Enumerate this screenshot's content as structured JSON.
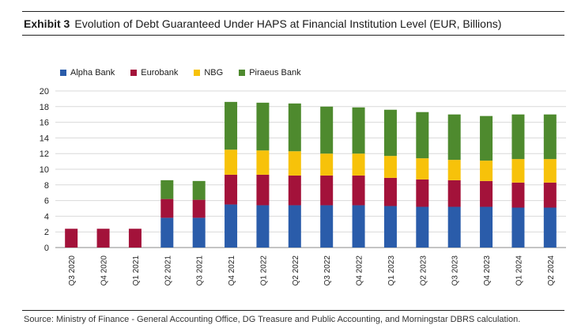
{
  "header": {
    "exhibit_label": "Exhibit 3",
    "title": "Evolution of Debt Guaranteed Under HAPS at Financial Institution Level (EUR, Billions)"
  },
  "footer": {
    "source": "Source: Ministry of Finance - General Accounting Office, DG Treasure and Public Accounting, and Morningstar DBRS calculation."
  },
  "colors": {
    "alpha": "#2a5caa",
    "eurobank": "#a3123a",
    "nbg": "#f7c20a",
    "piraeus": "#4e8a2e",
    "grid": "#d9d9d9",
    "axis": "#888888"
  },
  "chart_data": {
    "type": "bar",
    "stacked": true,
    "categories": [
      "Q3 2020",
      "Q4 2020",
      "Q1 2021",
      "Q2 2021",
      "Q3 2021",
      "Q4 2021",
      "Q1 2022",
      "Q2 2022",
      "Q3 2022",
      "Q4 2022",
      "Q1 2023",
      "Q2 2023",
      "Q3 2023",
      "Q4 2023",
      "Q1 2024",
      "Q2 2024"
    ],
    "series": [
      {
        "name": "Alpha Bank",
        "color": "#2a5caa",
        "values": [
          0,
          0,
          0,
          3.8,
          3.8,
          5.5,
          5.4,
          5.4,
          5.4,
          5.4,
          5.3,
          5.2,
          5.2,
          5.2,
          5.1,
          5.1
        ]
      },
      {
        "name": "Eurobank",
        "color": "#a3123a",
        "values": [
          2.4,
          2.4,
          2.4,
          2.4,
          2.3,
          3.8,
          3.9,
          3.8,
          3.8,
          3.8,
          3.6,
          3.5,
          3.4,
          3.3,
          3.2,
          3.2
        ]
      },
      {
        "name": "NBG",
        "color": "#f7c20a",
        "values": [
          0,
          0,
          0,
          0,
          0,
          3.2,
          3.1,
          3.1,
          2.8,
          2.8,
          2.8,
          2.7,
          2.6,
          2.6,
          3.0,
          3.0
        ]
      },
      {
        "name": "Piraeus Bank",
        "color": "#4e8a2e",
        "values": [
          0,
          0,
          0,
          2.4,
          2.4,
          6.1,
          6.1,
          6.1,
          6.0,
          5.9,
          5.9,
          5.9,
          5.8,
          5.7,
          5.7,
          5.7
        ]
      }
    ],
    "ylim": [
      0,
      20
    ],
    "yticks": [
      0,
      2,
      4,
      6,
      8,
      10,
      12,
      14,
      16,
      18,
      20
    ],
    "grid": true,
    "legend_position": "top-left"
  }
}
